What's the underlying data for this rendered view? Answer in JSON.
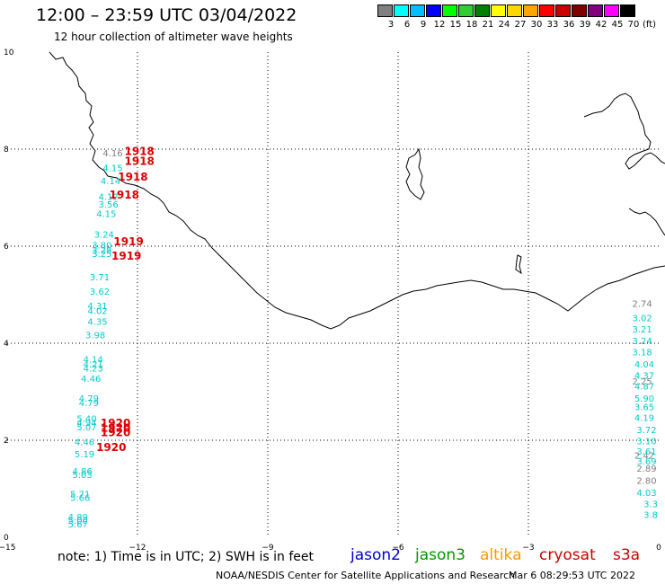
{
  "header": {
    "title": "12:00 – 23:59 UTC 03/04/2022",
    "subtitle": "12 hour collection of altimeter wave heights"
  },
  "color_scale": {
    "labels": [
      "3",
      "6",
      "9",
      "12",
      "15",
      "18",
      "21",
      "24",
      "27",
      "30",
      "33",
      "36",
      "39",
      "42",
      "45",
      "70"
    ],
    "unit": "(ft)",
    "colors": [
      "#808080",
      "#00ffff",
      "#00bfff",
      "#0000ff",
      "#00ff00",
      "#32cd32",
      "#008000",
      "#ffff00",
      "#ffd700",
      "#ffa500",
      "#ff0000",
      "#cc0000",
      "#800000",
      "#800080",
      "#ff00ff",
      "#000000"
    ]
  },
  "axes": {
    "x_ticks": [
      "−15",
      "−12",
      "−9",
      "−6",
      "−3",
      "0"
    ],
    "y_ticks": [
      "10",
      "8",
      "6",
      "4",
      "2",
      "0"
    ],
    "xlim": [
      -15,
      0
    ],
    "ylim": [
      0,
      10
    ]
  },
  "tracks": [
    {
      "color": "#808080",
      "points": [
        {
          "x": -12.8,
          "y": 7.85,
          "v": "4.16"
        },
        {
          "x": -0.15,
          "y": 4.75,
          "v": "2.74"
        },
        {
          "x": -0.15,
          "y": 3.15,
          "v": "2.25"
        },
        {
          "x": -0.1,
          "y": 1.62,
          "v": "2.42"
        },
        {
          "x": -0.05,
          "y": 1.35,
          "v": "2.89"
        },
        {
          "x": -0.05,
          "y": 1.1,
          "v": "2.80"
        }
      ]
    },
    {
      "color": "#00cccc",
      "points": [
        {
          "x": -12.8,
          "y": 7.55,
          "v": "4.15"
        },
        {
          "x": -12.85,
          "y": 7.28,
          "v": "4.14"
        },
        {
          "x": -12.9,
          "y": 6.95,
          "v": "4.12"
        },
        {
          "x": -12.9,
          "y": 6.8,
          "v": "3.56"
        },
        {
          "x": -12.95,
          "y": 6.6,
          "v": "4.15"
        },
        {
          "x": -13.0,
          "y": 6.18,
          "v": "3.24"
        },
        {
          "x": -13.05,
          "y": 5.95,
          "v": "3.80"
        },
        {
          "x": -13.05,
          "y": 5.85,
          "v": "3.28"
        },
        {
          "x": -13.05,
          "y": 5.78,
          "v": "3.25"
        },
        {
          "x": -13.1,
          "y": 5.3,
          "v": "3.71"
        },
        {
          "x": -13.1,
          "y": 5.0,
          "v": "3.62"
        },
        {
          "x": -13.15,
          "y": 4.7,
          "v": "4.31"
        },
        {
          "x": -13.15,
          "y": 4.6,
          "v": "4.02"
        },
        {
          "x": -13.15,
          "y": 4.38,
          "v": "4.35"
        },
        {
          "x": -13.2,
          "y": 4.1,
          "v": "3.98"
        },
        {
          "x": -13.25,
          "y": 3.6,
          "v": "4.14"
        },
        {
          "x": -13.25,
          "y": 3.5,
          "v": "4.21"
        },
        {
          "x": -13.25,
          "y": 3.42,
          "v": "4.23"
        },
        {
          "x": -13.3,
          "y": 3.2,
          "v": "4.46"
        },
        {
          "x": -13.35,
          "y": 2.8,
          "v": "4.79"
        },
        {
          "x": -13.35,
          "y": 2.7,
          "v": "4.79"
        },
        {
          "x": -13.4,
          "y": 2.38,
          "v": "5.40"
        },
        {
          "x": -13.4,
          "y": 2.3,
          "v": "4.94"
        },
        {
          "x": -13.4,
          "y": 2.2,
          "v": "5.07"
        },
        {
          "x": -13.45,
          "y": 1.9,
          "v": "4.46"
        },
        {
          "x": -13.45,
          "y": 1.65,
          "v": "5.19"
        },
        {
          "x": -13.5,
          "y": 1.3,
          "v": "4.86"
        },
        {
          "x": -13.5,
          "y": 1.22,
          "v": "5.03"
        },
        {
          "x": -13.55,
          "y": 0.82,
          "v": "5.71"
        },
        {
          "x": -13.55,
          "y": 0.75,
          "v": "5.66"
        },
        {
          "x": -13.6,
          "y": 0.35,
          "v": "4.89"
        },
        {
          "x": -13.6,
          "y": 0.28,
          "v": "5.00"
        },
        {
          "x": -13.6,
          "y": 0.2,
          "v": "5.67"
        },
        {
          "x": -0.15,
          "y": 4.45,
          "v": "3.02"
        },
        {
          "x": -0.15,
          "y": 4.22,
          "v": "3.21"
        },
        {
          "x": -0.15,
          "y": 3.98,
          "v": "3.24"
        },
        {
          "x": -0.15,
          "y": 3.75,
          "v": "3.18"
        },
        {
          "x": -0.1,
          "y": 3.5,
          "v": "4.04"
        },
        {
          "x": -0.1,
          "y": 3.27,
          "v": "4.37"
        },
        {
          "x": -0.1,
          "y": 3.05,
          "v": "4.87"
        },
        {
          "x": -0.1,
          "y": 2.8,
          "v": "5.90"
        },
        {
          "x": -0.1,
          "y": 2.62,
          "v": "3.65"
        },
        {
          "x": -0.1,
          "y": 2.4,
          "v": "4.19"
        },
        {
          "x": -0.05,
          "y": 2.15,
          "v": "3.72"
        },
        {
          "x": -0.05,
          "y": 1.92,
          "v": "3.10"
        },
        {
          "x": -0.05,
          "y": 1.7,
          "v": "3.61"
        },
        {
          "x": -0.05,
          "y": 1.5,
          "v": "3.69"
        },
        {
          "x": -0.05,
          "y": 0.85,
          "v": "4.03"
        },
        {
          "x": -0.02,
          "y": 0.62,
          "v": "3.3"
        },
        {
          "x": -0.02,
          "y": 0.4,
          "v": "3.8"
        }
      ]
    }
  ],
  "time_labels": [
    {
      "x": -12.3,
      "y": 7.88,
      "t": "1918"
    },
    {
      "x": -12.3,
      "y": 7.68,
      "t": "1918"
    },
    {
      "x": -12.45,
      "y": 7.35,
      "t": "1918"
    },
    {
      "x": -12.65,
      "y": 6.98,
      "t": "1918"
    },
    {
      "x": -12.55,
      "y": 6.02,
      "t": "1919"
    },
    {
      "x": -12.6,
      "y": 5.72,
      "t": "1919"
    },
    {
      "x": -12.85,
      "y": 2.28,
      "t": "1920"
    },
    {
      "x": -12.85,
      "y": 2.18,
      "t": "1920"
    },
    {
      "x": -12.85,
      "y": 2.08,
      "t": "1920"
    },
    {
      "x": -12.95,
      "y": 1.78,
      "t": "1920"
    }
  ],
  "footer": {
    "note": "note:  1) Time is in UTC;  2) SWH is in feet",
    "satellites": [
      {
        "name": "jason2",
        "color": "#0000cc"
      },
      {
        "name": "jason3",
        "color": "#009900"
      },
      {
        "name": "altika",
        "color": "#ff9900"
      },
      {
        "name": "cryosat",
        "color": "#cc0000"
      },
      {
        "name": "s3a",
        "color": "#cc0000"
      }
    ],
    "credit": "NOAA/NESDIS Center for Satellite Applications and Research",
    "timestamp": "Mar  6 08:29:53 UTC 2022"
  }
}
